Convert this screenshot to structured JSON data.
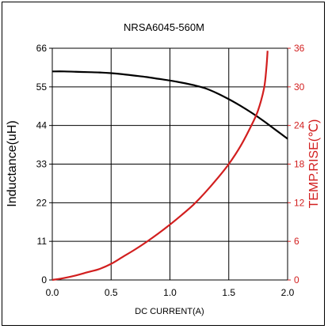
{
  "chart_data": {
    "type": "line",
    "title": "NRSA6045-560M",
    "xlabel": "DC CURRENT(A)",
    "ylabel_left": "Inductance(uH)",
    "ylabel_right": "TEMP.RISE(℃)",
    "xlim": [
      0,
      2.0
    ],
    "ylim_left": [
      0,
      66
    ],
    "ylim_right": [
      0,
      36
    ],
    "x_ticks": [
      "0.0",
      "0.5",
      "1.0",
      "1.5",
      "2.0"
    ],
    "y_left_ticks": [
      "0",
      "11",
      "22",
      "33",
      "44",
      "55",
      "66"
    ],
    "y_right_ticks": [
      "0",
      "6",
      "12",
      "18",
      "24",
      "30",
      "36"
    ],
    "grid": true,
    "series": [
      {
        "axis": "left",
        "color": "#000000",
        "x": [
          0.0,
          0.1,
          0.2,
          0.3,
          0.4,
          0.5,
          0.6,
          0.7,
          0.8,
          0.9,
          1.0,
          1.1,
          1.2,
          1.3,
          1.4,
          1.5,
          1.6,
          1.7,
          1.8,
          1.9,
          2.0
        ],
        "values": [
          59.4,
          59.4,
          59.3,
          59.2,
          59.1,
          58.9,
          58.6,
          58.2,
          57.8,
          57.3,
          56.8,
          56.2,
          55.5,
          54.6,
          53.2,
          51.5,
          49.6,
          47.5,
          45.2,
          42.7,
          40.2
        ]
      },
      {
        "axis": "right",
        "color": "#d21f1f",
        "x": [
          0.0,
          0.1,
          0.2,
          0.3,
          0.4,
          0.5,
          0.6,
          0.7,
          0.8,
          0.9,
          1.0,
          1.1,
          1.2,
          1.3,
          1.4,
          1.5,
          1.6,
          1.7,
          1.75,
          1.8,
          1.82,
          1.83
        ],
        "values": [
          0.0,
          0.3,
          0.7,
          1.2,
          1.7,
          2.5,
          3.6,
          4.7,
          5.9,
          7.2,
          8.6,
          10.1,
          11.7,
          13.6,
          15.7,
          18.0,
          20.8,
          24.3,
          26.4,
          29.8,
          33.0,
          35.6
        ]
      }
    ]
  }
}
